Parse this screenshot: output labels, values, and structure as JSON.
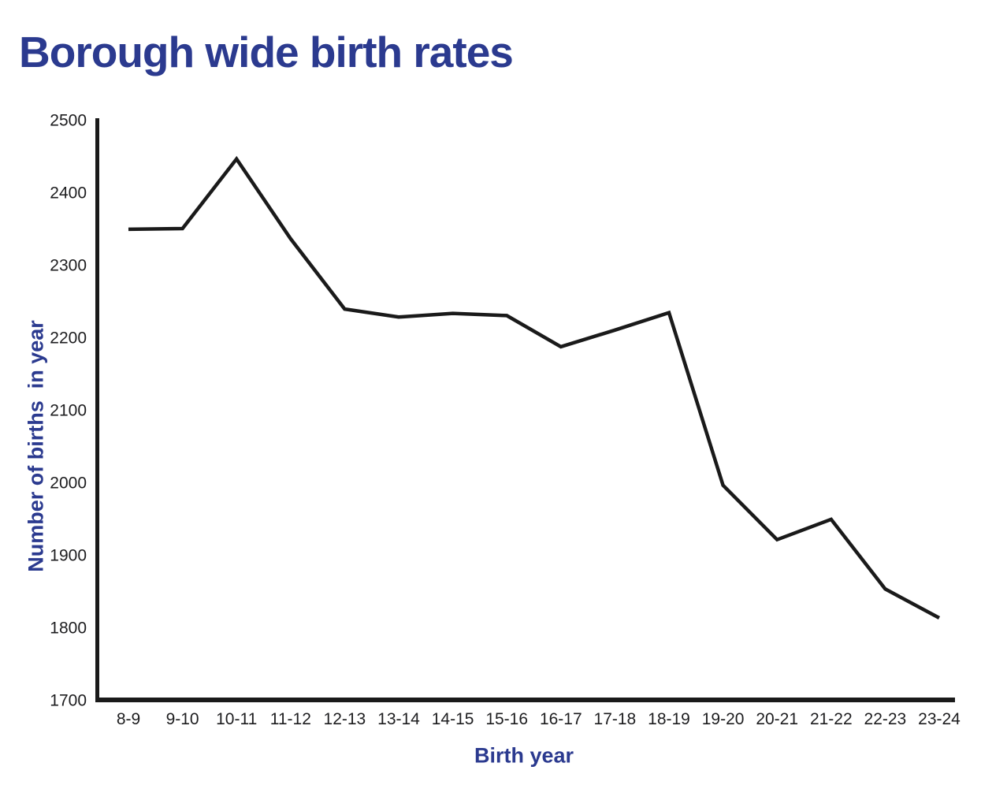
{
  "page": {
    "title": "Borough wide birth rates"
  },
  "chart_data": {
    "type": "line",
    "title": "Borough wide birth rates",
    "xlabel": "Birth year",
    "ylabel": "Number of births  in year",
    "categories": [
      "8-9",
      "9-10",
      "10-11",
      "11-12",
      "12-13",
      "13-14",
      "14-15",
      "15-16",
      "16-17",
      "17-18",
      "18-19",
      "19-20",
      "20-21",
      "21-22",
      "22-23",
      "23-24"
    ],
    "values": [
      2349,
      2350,
      2446,
      2336,
      2239,
      2228,
      2233,
      2230,
      2187,
      2210,
      2234,
      1996,
      1921,
      1949,
      1853,
      1813
    ],
    "yticks": [
      "2500",
      "2400",
      "2300",
      "2200",
      "2100",
      "2000",
      "1900",
      "1800",
      "1700"
    ],
    "ylim": [
      1700,
      2500
    ],
    "ytick_step": 100,
    "grid": false,
    "legend_position": "none",
    "colors": {
      "accent": "#2b3a8f",
      "line": "#1a1a1a",
      "axis": "#1a1a1a",
      "tick_text": "#1d1d1f",
      "background": "#ffffff"
    }
  }
}
